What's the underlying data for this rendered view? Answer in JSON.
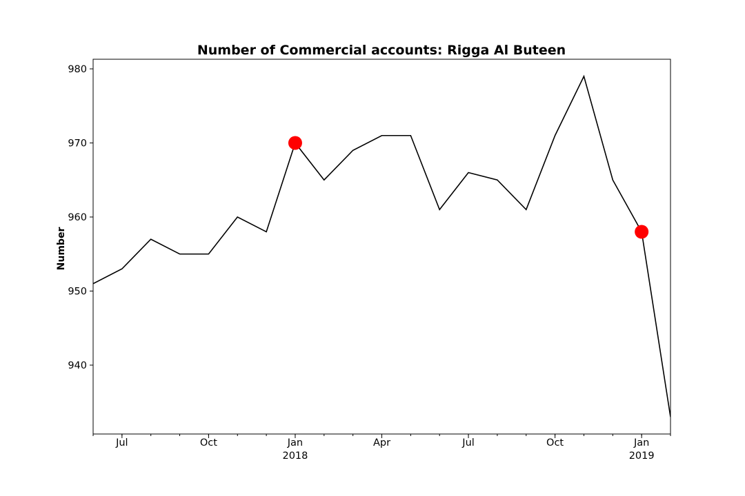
{
  "chart_data": {
    "type": "line",
    "title": "Number of Commercial accounts: Rigga Al Buteen",
    "xlabel": "",
    "ylabel": "Number",
    "x": [
      "2017-06",
      "2017-07",
      "2017-08",
      "2017-09",
      "2017-10",
      "2017-11",
      "2017-12",
      "2018-01",
      "2018-02",
      "2018-03",
      "2018-04",
      "2018-05",
      "2018-06",
      "2018-07",
      "2018-08",
      "2018-09",
      "2018-10",
      "2018-11",
      "2018-12",
      "2019-01",
      "2019-02"
    ],
    "series": [
      {
        "values": [
          951,
          953,
          957,
          955,
          955,
          960,
          958,
          970,
          965,
          969,
          971,
          971,
          961,
          966,
          965,
          961,
          971,
          979,
          965,
          958,
          933
        ],
        "color": "#000000"
      }
    ],
    "highlights": [
      {
        "x": "2018-01",
        "y": 970,
        "color": "#ff0000"
      },
      {
        "x": "2019-01",
        "y": 958,
        "color": "#ff0000"
      }
    ],
    "ylim": [
      930.7,
      981.3
    ],
    "yticks": [
      940,
      950,
      960,
      970,
      980
    ],
    "xlim": [
      "2017-06",
      "2019-02"
    ],
    "xticks": [
      {
        "x": "2017-07",
        "label": "Jul",
        "sublabel": ""
      },
      {
        "x": "2017-10",
        "label": "Oct",
        "sublabel": ""
      },
      {
        "x": "2018-01",
        "label": "Jan",
        "sublabel": "2018"
      },
      {
        "x": "2018-04",
        "label": "Apr",
        "sublabel": ""
      },
      {
        "x": "2018-07",
        "label": "Jul",
        "sublabel": ""
      },
      {
        "x": "2018-10",
        "label": "Oct",
        "sublabel": ""
      },
      {
        "x": "2019-01",
        "label": "Jan",
        "sublabel": "2019"
      }
    ],
    "grid": false,
    "legend": "none"
  }
}
